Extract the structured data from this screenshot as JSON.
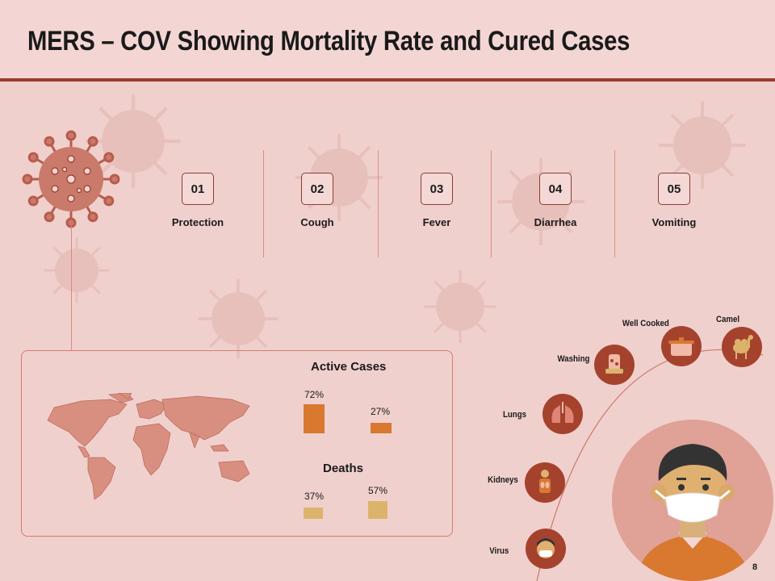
{
  "title": "MERS – COV Showing Mortality Rate and Cured Cases",
  "steps": [
    {
      "number": "01",
      "label": "Protection"
    },
    {
      "number": "02",
      "label": "Cough"
    },
    {
      "number": "03",
      "label": "Fever"
    },
    {
      "number": "04",
      "label": "Diarrhea"
    },
    {
      "number": "05",
      "label": "Vomiting"
    }
  ],
  "active_cases": {
    "title": "Active Cases",
    "bars": [
      {
        "value": 72,
        "label": "72%"
      },
      {
        "value": 27,
        "label": "27%"
      }
    ]
  },
  "deaths": {
    "title": "Deaths",
    "bars": [
      {
        "value": 37,
        "label": "37%"
      },
      {
        "value": 57,
        "label": "57%"
      }
    ]
  },
  "ring_items": [
    {
      "label": "Camel",
      "icon": "camel-icon"
    },
    {
      "label": "Well Cooked",
      "icon": "cooking-pot-icon"
    },
    {
      "label": "Washing",
      "icon": "washing-icon"
    },
    {
      "label": "Lungs",
      "icon": "lungs-icon"
    },
    {
      "label": "Kidneys",
      "icon": "kidneys-icon"
    },
    {
      "label": "Virus",
      "icon": "masked-person-icon"
    }
  ],
  "colors": {
    "background": "#f0d0cd",
    "accent": "#9b3b2e",
    "virus": "#c97a6a",
    "active_bar": "#d9782f",
    "deaths_bar": "#dcb36b",
    "map": "#d98f80"
  },
  "page_number": "8"
}
